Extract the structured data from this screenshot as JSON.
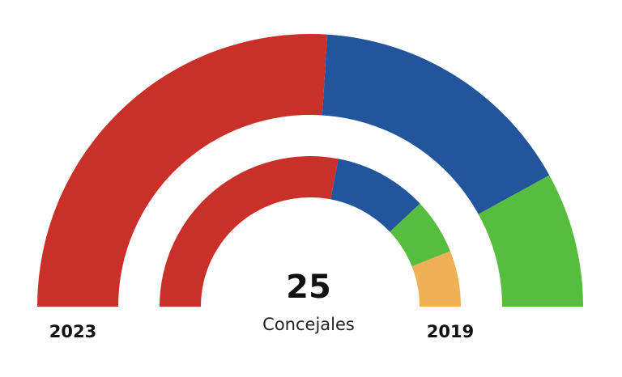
{
  "chart_data": {
    "type": "pie",
    "subtype": "parliament-semicircle",
    "total": "25",
    "total_label": "Concejales",
    "rings": [
      {
        "name": "2023",
        "position": "outer",
        "segments": [
          {
            "seats": 13,
            "color": "#c9302a"
          },
          {
            "seats": 8,
            "color": "#23559c"
          },
          {
            "seats": 4,
            "color": "#57bd3f"
          }
        ]
      },
      {
        "name": "2019",
        "position": "inner",
        "segments": [
          {
            "seats": 14,
            "color": "#c9302a"
          },
          {
            "seats": 5,
            "color": "#23559c"
          },
          {
            "seats": 3,
            "color": "#57bd3f"
          },
          {
            "seats": 3,
            "color": "#efb056"
          }
        ]
      }
    ]
  }
}
